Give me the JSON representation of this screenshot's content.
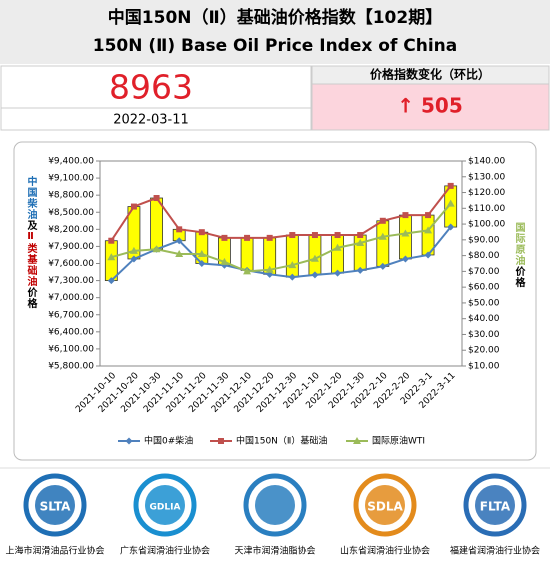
{
  "header": {
    "title_cn": "中国150N（Ⅱ）基础油价格指数【102期】",
    "title_en": "150N (Ⅱ) Base Oil Price Index of China"
  },
  "index": {
    "value": 8963,
    "date": "2022-03-11",
    "change_label": "价格指数变化（环比）",
    "change": "↑ 505"
  },
  "chart_data": {
    "type": "line",
    "left_axis_label": [
      "中国柴油",
      "及",
      "Ⅱ类基础油",
      "价格"
    ],
    "right_axis_label": [
      "国际原油",
      "价格"
    ],
    "categories": [
      "2021-10-10",
      "2021-10-20",
      "2021-10-30",
      "2021-11-10",
      "2021-11-20",
      "2021-11-30",
      "2021-12-10",
      "2021-12-20",
      "2021-12-30",
      "2022-1-10",
      "2022-1-20",
      "2022-1-30",
      "2022-2-10",
      "2022-2-20",
      "2022-3-1",
      "2022-3-11"
    ],
    "series": [
      {
        "name": "中国0#柴油",
        "color": "#4f81bd",
        "marker": "diamond",
        "values": [
          7300,
          7680,
          7850,
          8000,
          7600,
          7570,
          7480,
          7410,
          7360,
          7400,
          7430,
          7480,
          7550,
          7680,
          7750,
          8240
        ]
      },
      {
        "name": "中国150N（Ⅱ）基础油",
        "color": "#c0504d",
        "marker": "square",
        "values": [
          8000,
          8600,
          8750,
          8200,
          8150,
          8050,
          8050,
          8050,
          8100,
          8100,
          8100,
          8100,
          8350,
          8450,
          8450,
          8963
        ]
      },
      {
        "name": "国际原油WTI",
        "color": "#9bbb59",
        "marker": "triangle",
        "axis": "y2",
        "values": [
          79,
          83,
          84,
          81,
          81,
          76,
          70,
          71,
          74,
          78,
          85,
          88,
          92,
          94,
          96,
          113
        ]
      }
    ],
    "updown_bars": {
      "color": "#ffff00"
    },
    "ylim": [
      5800,
      9400
    ],
    "yticks": [
      {
        "value": 5800,
        "label": "¥5,800.00"
      },
      {
        "value": 6100,
        "label": "¥6,100.00"
      },
      {
        "value": 6400,
        "label": "¥6,400.00"
      },
      {
        "value": 6700,
        "label": "¥6,700.00"
      },
      {
        "value": 7000,
        "label": "¥7,000.00"
      },
      {
        "value": 7300,
        "label": "¥7,300.00"
      },
      {
        "value": 7600,
        "label": "¥7,600.00"
      },
      {
        "value": 7900,
        "label": "¥7,900.00"
      },
      {
        "value": 8200,
        "label": "¥8,200.00"
      },
      {
        "value": 8500,
        "label": "¥8,500.00"
      },
      {
        "value": 8800,
        "label": "¥8,800.00"
      },
      {
        "value": 9100,
        "label": "¥9,100.00"
      },
      {
        "value": 9400,
        "label": "¥9,400.00"
      }
    ],
    "y2lim": [
      10,
      140
    ],
    "y2ticks": [
      {
        "value": 10,
        "label": "$10.00"
      },
      {
        "value": 20,
        "label": "$20.00"
      },
      {
        "value": 30,
        "label": "$30.00"
      },
      {
        "value": 40,
        "label": "$40.00"
      },
      {
        "value": 50,
        "label": "$50.00"
      },
      {
        "value": 60,
        "label": "$60.00"
      },
      {
        "value": 70,
        "label": "$70.00"
      },
      {
        "value": 80,
        "label": "$80.00"
      },
      {
        "value": 90,
        "label": "$90.00"
      },
      {
        "value": 100,
        "label": "$100.00"
      },
      {
        "value": 110,
        "label": "$110.00"
      },
      {
        "value": 120,
        "label": "$120.00"
      },
      {
        "value": 130,
        "label": "$130.00"
      },
      {
        "value": 140,
        "label": "$140.00"
      }
    ]
  },
  "footer": {
    "logos": [
      {
        "abbr": "SLTA",
        "name": "上海市润滑油品行业协会",
        "color": "#1f6fb5"
      },
      {
        "abbr": "GDLIA",
        "name": "广东省润滑油行业协会",
        "color": "#1a8fd0"
      },
      {
        "name": "天津市润滑油脂协会",
        "color": "#2a7fc0"
      },
      {
        "abbr": "SDLA",
        "name": "山东省润滑油行业协会",
        "color": "#e38b1c"
      },
      {
        "abbr": "FLTA",
        "name": "福建省润滑油行业协会",
        "color": "#2a6db5"
      }
    ]
  }
}
